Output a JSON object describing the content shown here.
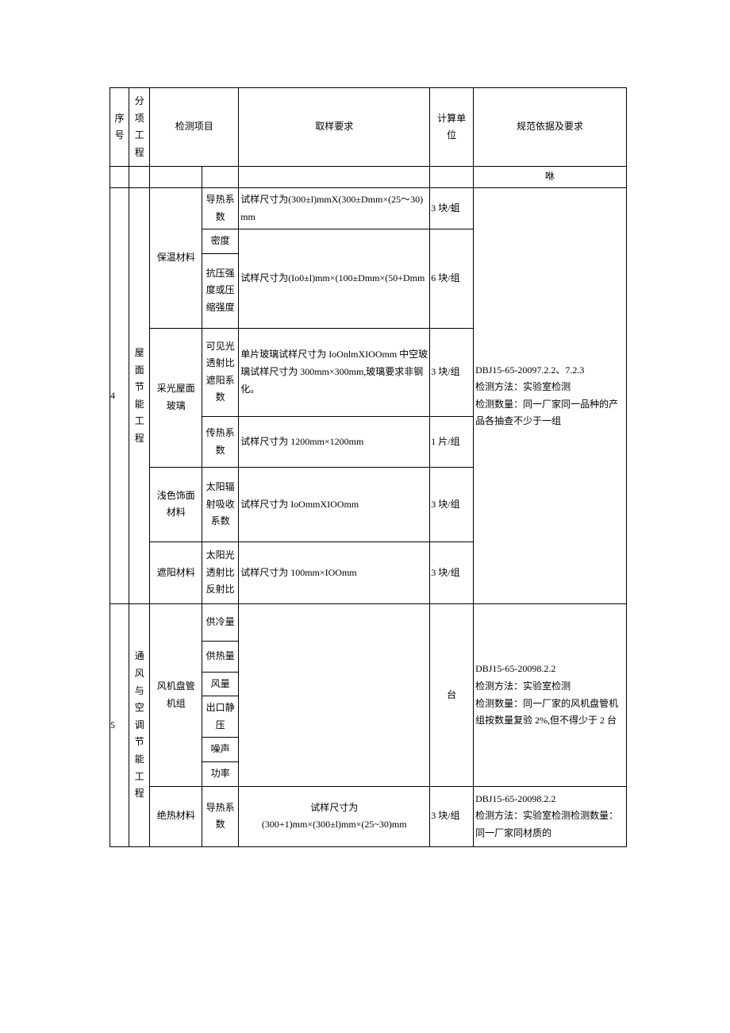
{
  "header": {
    "col_idx": "序号",
    "col_proj": "分项工程",
    "col_test": "检测项目",
    "col_req": "取样要求",
    "col_unit": "计算单位",
    "col_norm": "规范依据及要求"
  },
  "spacer_row_norm": "咻",
  "sec4": {
    "idx": "4",
    "proj": "屋面节能工程",
    "insulation": {
      "name": "保温材料",
      "p1": {
        "param": "导热系数",
        "req": "试样尺寸为(300±l)mmX(300±Dmm×(25～30)mm",
        "unit": "3 块/蛆"
      },
      "p2": {
        "param": "密度",
        "req": "试样尺寸为(Io0±l)mm×(100±Dmm×(50+Dmm",
        "unit": "6 块/组"
      },
      "p3": {
        "param": "抗压强度或压缩强度"
      }
    },
    "skylight_glass": {
      "name": "采光屋面玻璃",
      "p1": {
        "param": "可见光透射比遮阳系数",
        "req": "单片玻璃试样尺寸为 IoOnlmXIOOmm 中空玻璃试样尺寸为 300mm×300mm,玻璃要求非钢化。",
        "unit": "3 块/组"
      },
      "p2": {
        "param": "传热系数",
        "req": "试样尺寸为 1200mm×1200mm",
        "unit": "1 片/组"
      }
    },
    "light_finish": {
      "name": "浅色饰面材料",
      "p1": {
        "param": "太阳辐射吸收系数",
        "req": "试样尺寸为 IoOmmXIOOmm",
        "unit": "3 块/组"
      }
    },
    "shade": {
      "name": "遮阳材料",
      "p1": {
        "param": "太阳光透射比反射比",
        "req": "试样尺寸为 100mm×IOOmm",
        "unit": "3 块/组"
      }
    },
    "norm": "DBJ15-65-20097.2.2、7.2.3\n检测方法：实验室检测\n检测数量：同一厂家同一品种的产品各抽查不少于一组"
  },
  "sec5": {
    "idx": "5",
    "proj": "通风与空调节能工程",
    "fan_coil": {
      "name": "风机盘管机组",
      "p1": "供冷量",
      "p2": "供热量",
      "p3": "风量",
      "p4": "出口静压",
      "p5": "噪声",
      "p6": "功率",
      "req": "",
      "unit": "台",
      "norm": "DBJ15-65-20098.2.2\n检测方法：实验室检测\n检测数量：同一厂家的风机盘管机组按数量复验 2%,但不得少于 2 台"
    },
    "thermal_ins": {
      "name": "绝热材料",
      "p1": {
        "param": "导热系数",
        "req": "试样尺寸为\n(300+1)mm×(300±l)mm×(25~30)mm",
        "unit": "3 块/组"
      },
      "norm": "DBJ15-65-20098.2.2\n检测方法：实验室检测检测数量：同一厂家同材质的"
    }
  }
}
